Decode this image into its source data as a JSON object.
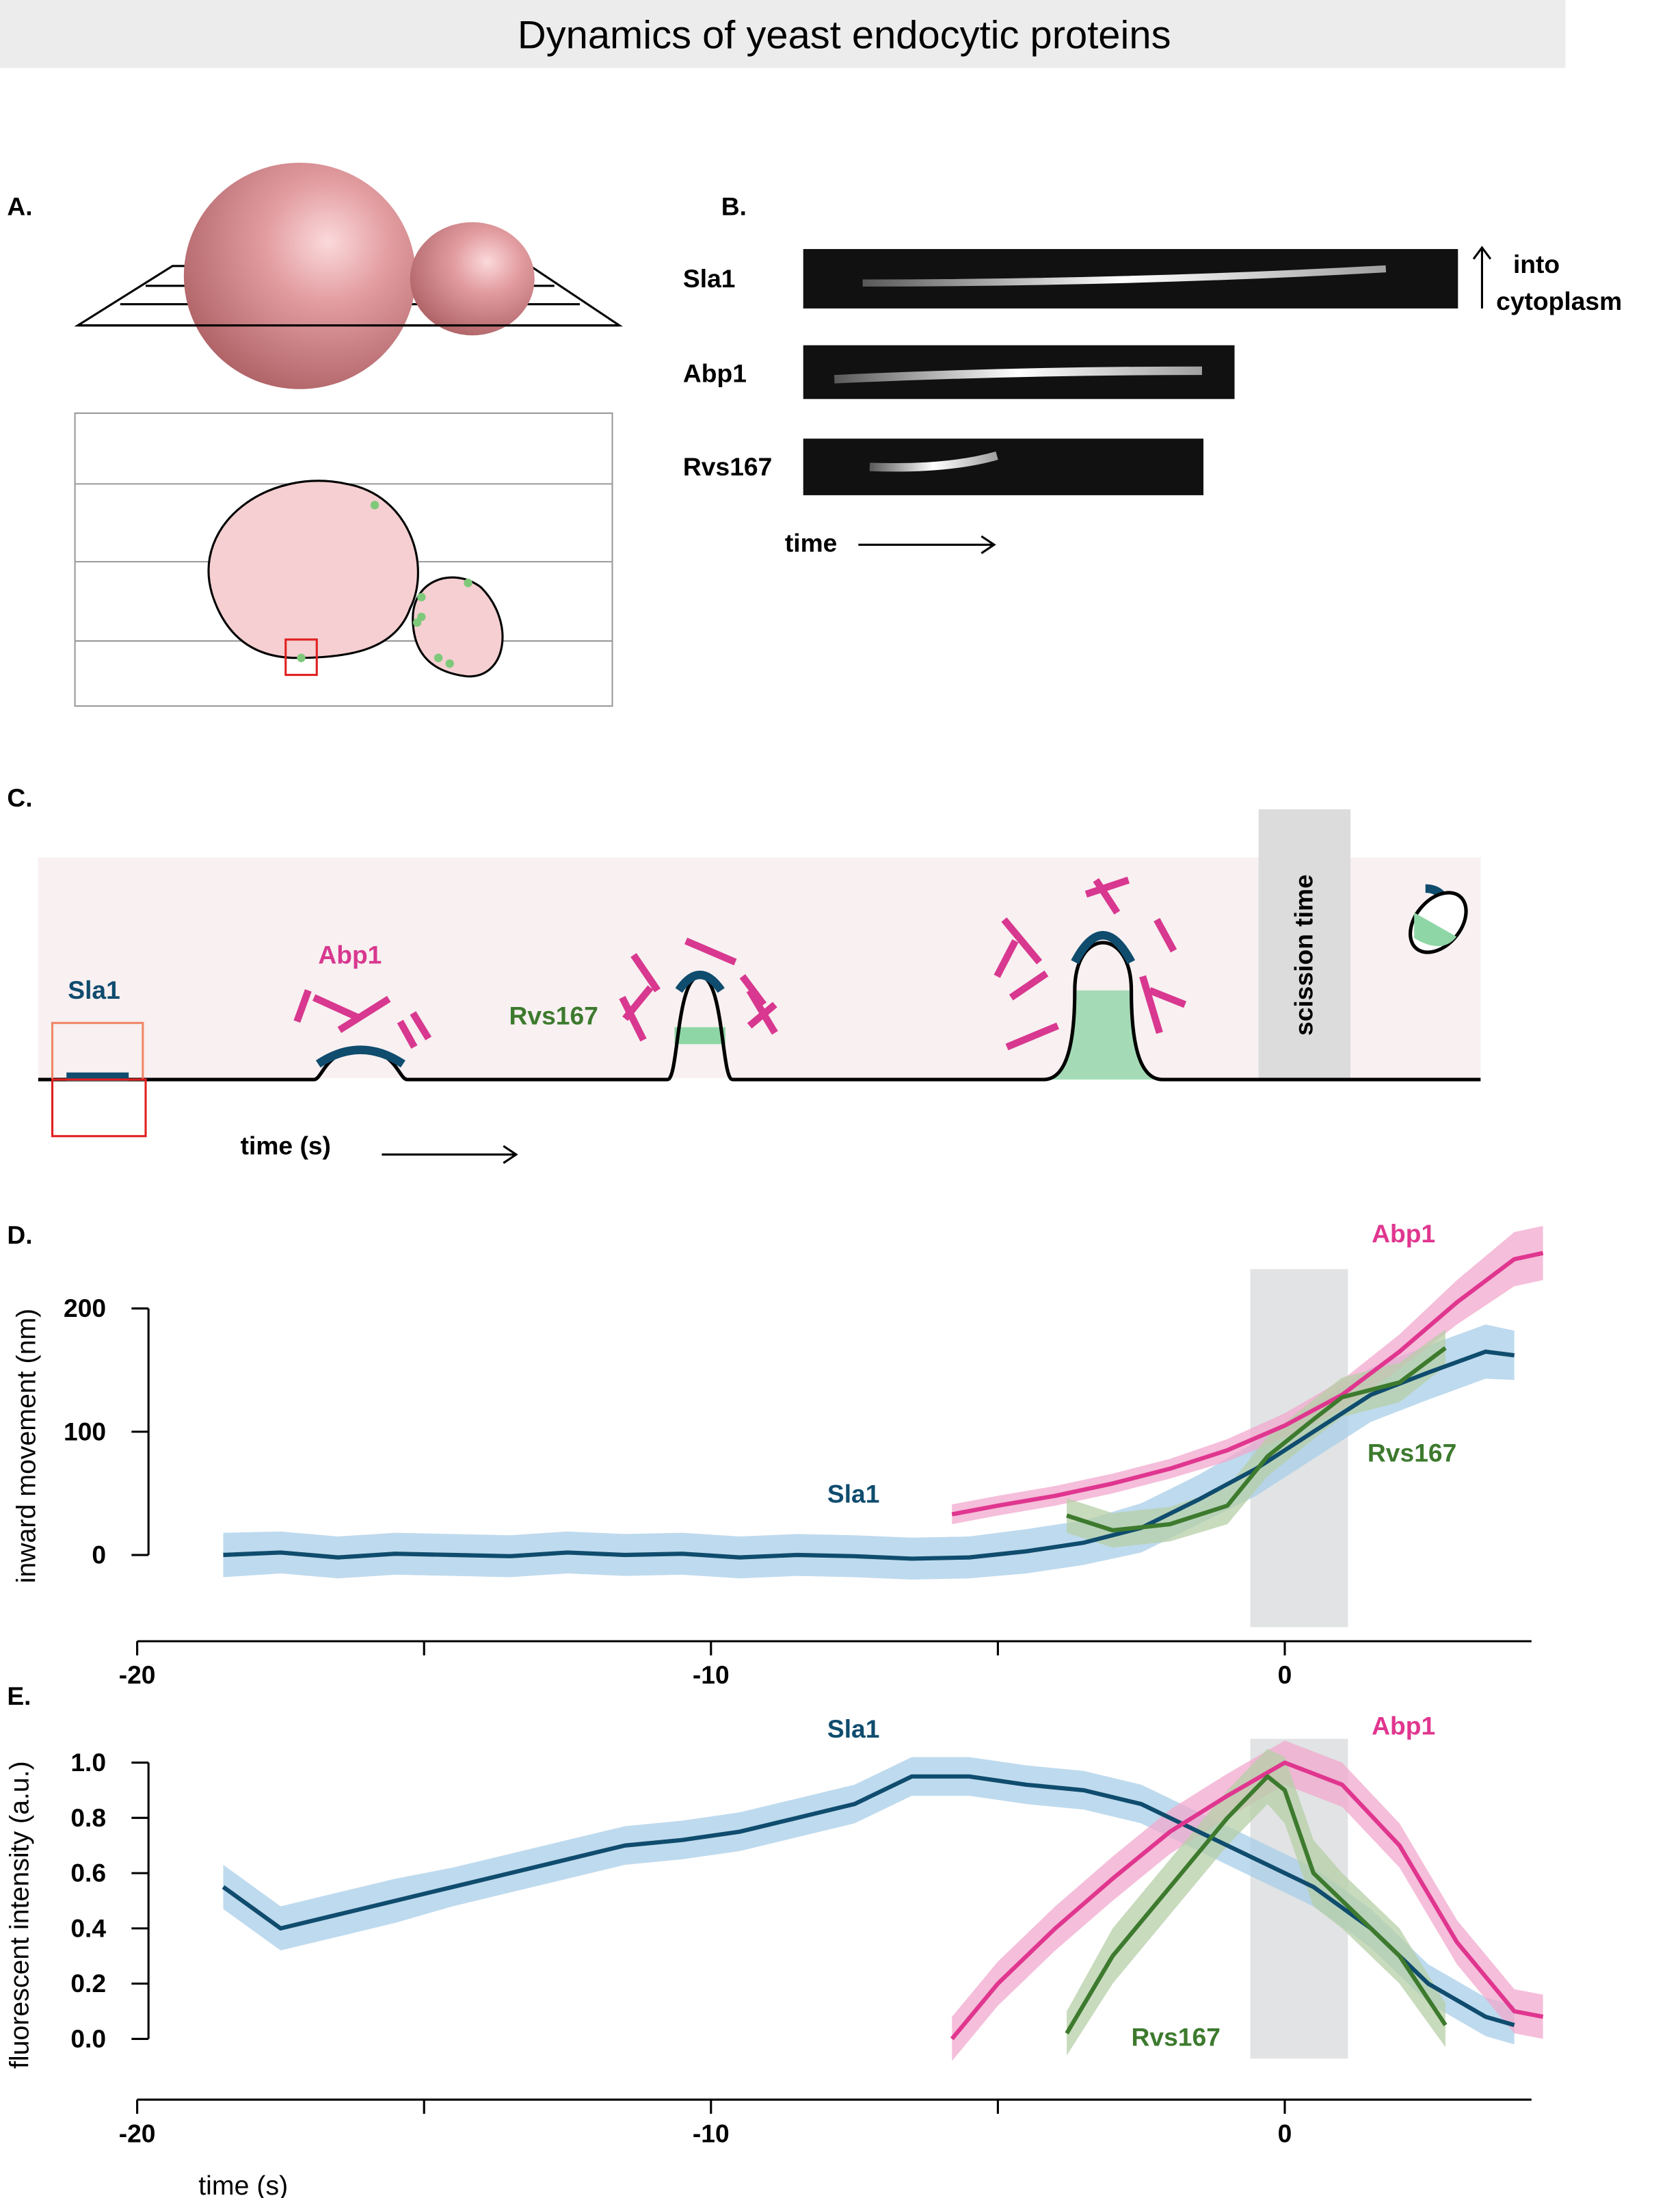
{
  "title": "Dynamics of yeast endocytic proteins",
  "panel_labels": [
    "A.",
    "B.",
    "C.",
    "D.",
    "E."
  ],
  "kymograph": {
    "rows": [
      "Sla1",
      "Abp1",
      "Rvs167"
    ],
    "time_label": "time",
    "direction_label_1": "into",
    "direction_label_2": "cytoplasm"
  },
  "schematic": {
    "labels": [
      "Sla1",
      "Abp1",
      "Rvs167"
    ],
    "scission_label": "scission time",
    "time_label": "time (s)"
  },
  "chart_data": [
    {
      "type": "line",
      "ylabel": "inward movement (nm)",
      "xlim": [
        -20,
        4.3
      ],
      "ylim": [
        -70,
        310
      ],
      "xticks": [
        -20,
        -10,
        0
      ],
      "minor_xticks": [
        -15,
        -5
      ],
      "yticks": [
        0,
        100,
        200
      ],
      "highlight": [
        -0.6,
        1.1
      ],
      "series": [
        {
          "name": "Sla1",
          "color": "#0f4c6e",
          "band_color": "#a8cde8",
          "x": [
            -18.5,
            -17.5,
            -16.5,
            -15.5,
            -14.5,
            -13.5,
            -12.5,
            -11.5,
            -10.5,
            -9.5,
            -8.5,
            -7.5,
            -6.5,
            -5.5,
            -4.5,
            -3.5,
            -2.5,
            -1.5,
            -0.5,
            0.5,
            1.5,
            2.5,
            3.5,
            4
          ],
          "values": [
            0,
            2,
            -2,
            1,
            0,
            -1,
            2,
            0,
            1,
            -2,
            0,
            -1,
            -3,
            -2,
            3,
            10,
            22,
            45,
            70,
            100,
            130,
            148,
            165,
            162
          ],
          "errors": [
            18,
            17,
            17,
            17,
            17,
            17,
            17,
            17,
            17,
            17,
            17,
            17,
            17,
            17,
            18,
            18,
            20,
            20,
            22,
            22,
            22,
            22,
            22,
            20
          ]
        },
        {
          "name": "Abp1",
          "color": "#e0368f",
          "band_color": "#f2a8cd",
          "x": [
            -5.8,
            -5,
            -4,
            -3,
            -2,
            -1,
            0,
            1,
            2,
            3,
            4,
            4.5
          ],
          "values": [
            33,
            40,
            48,
            58,
            70,
            85,
            105,
            130,
            165,
            205,
            240,
            245
          ],
          "errors": [
            8,
            8,
            8,
            8,
            8,
            9,
            10,
            12,
            14,
            18,
            22,
            22
          ]
        },
        {
          "name": "Rvs167",
          "color": "#3d7a2e",
          "band_color": "#b5cfa7",
          "x": [
            -3.8,
            -3,
            -2,
            -1,
            -0.3,
            0.5,
            1,
            2,
            2.8
          ],
          "values": [
            32,
            20,
            25,
            40,
            80,
            110,
            128,
            140,
            168
          ],
          "errors": [
            14,
            14,
            14,
            15,
            16,
            16,
            16,
            16,
            15
          ]
        }
      ]
    },
    {
      "type": "line",
      "ylabel": "fluorescent intensity (a.u.)",
      "xlabel": "time (s)",
      "xlim": [
        -20,
        4.3
      ],
      "ylim": [
        -0.22,
        1.25
      ],
      "xticks": [
        -20,
        -10,
        0
      ],
      "minor_xticks": [
        -15,
        -5
      ],
      "yticks": [
        {
          "value": 0,
          "label": "0.0"
        },
        0.2,
        0.4,
        0.6,
        0.8,
        {
          "value": 1,
          "label": "1.0"
        }
      ],
      "highlight": [
        -0.6,
        1.1
      ],
      "series": [
        {
          "name": "Sla1",
          "color": "#0f4c6e",
          "band_color": "#a8cde8",
          "x": [
            -18.5,
            -17.5,
            -16.5,
            -15.5,
            -14.5,
            -13.5,
            -12.5,
            -11.5,
            -10.5,
            -9.5,
            -8.5,
            -7.5,
            -6.5,
            -5.5,
            -4.5,
            -3.5,
            -2.5,
            -1.5,
            -0.5,
            0.5,
            1.5,
            2.5,
            3.5,
            4
          ],
          "values": [
            0.55,
            0.4,
            0.45,
            0.5,
            0.55,
            0.6,
            0.65,
            0.7,
            0.72,
            0.75,
            0.8,
            0.85,
            0.95,
            0.95,
            0.92,
            0.9,
            0.85,
            0.75,
            0.65,
            0.55,
            0.4,
            0.2,
            0.08,
            0.05
          ],
          "errors": [
            0.08,
            0.08,
            0.08,
            0.08,
            0.07,
            0.07,
            0.07,
            0.07,
            0.07,
            0.07,
            0.07,
            0.07,
            0.07,
            0.07,
            0.07,
            0.07,
            0.07,
            0.07,
            0.07,
            0.07,
            0.07,
            0.07,
            0.07,
            0.07
          ]
        },
        {
          "name": "Abp1",
          "color": "#e0368f",
          "band_color": "#f2a8cd",
          "x": [
            -5.8,
            -5,
            -4,
            -3,
            -2,
            -1,
            0,
            1,
            2,
            3,
            4,
            4.5
          ],
          "values": [
            0,
            0.2,
            0.4,
            0.58,
            0.75,
            0.88,
            1,
            0.92,
            0.7,
            0.35,
            0.1,
            0.08
          ],
          "errors": [
            0.08,
            0.08,
            0.08,
            0.08,
            0.08,
            0.08,
            0.08,
            0.08,
            0.08,
            0.08,
            0.08,
            0.08
          ]
        },
        {
          "name": "Rvs167",
          "color": "#3d7a2e",
          "band_color": "#b5cfa7",
          "x": [
            -3.8,
            -3,
            -2,
            -1,
            -0.3,
            0,
            0.5,
            1,
            2,
            2.8
          ],
          "values": [
            0.02,
            0.3,
            0.55,
            0.8,
            0.95,
            0.9,
            0.6,
            0.5,
            0.3,
            0.05
          ],
          "errors": [
            0.08,
            0.1,
            0.1,
            0.1,
            0.1,
            0.12,
            0.12,
            0.1,
            0.1,
            0.08
          ]
        }
      ]
    }
  ]
}
